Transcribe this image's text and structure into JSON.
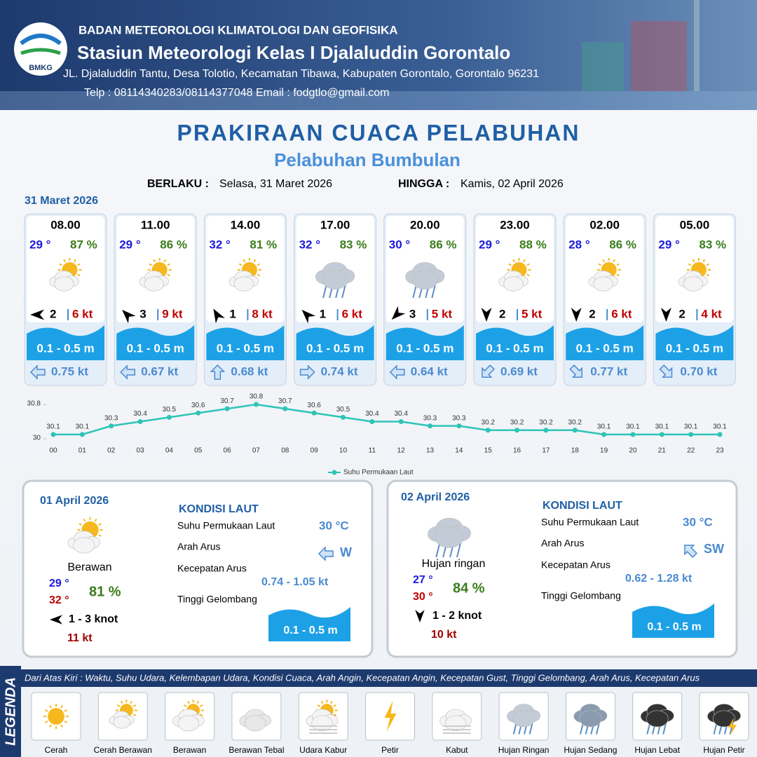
{
  "header": {
    "org": "BADAN METEOROLOGI KLIMATOLOGI DAN GEOFISIKA",
    "logo_text": "BMKG",
    "station": "Stasiun Meteorologi Kelas I Djalaluddin Gorontalo",
    "address": "JL. Djalaluddin Tantu, Desa Tolotio, Kecamatan Tibawa, Kabupaten Gorontalo, Gorontalo 96231",
    "contact": "Telp : 08114340283/08114377048 Email : fodgtlo@gmail.com"
  },
  "title": "PRAKIRAAN CUACA PELABUHAN",
  "subtitle": "Pelabuhan Bumbulan",
  "validity": {
    "from_label": "BERLAKU :",
    "from": "Selasa, 31 Maret 2026",
    "to_label": "HINGGA :",
    "to": "Kamis, 02 April 2026"
  },
  "forecast_date": "31 Maret 2026",
  "cards": [
    {
      "time": "08.00",
      "temp": "29 °",
      "humidity": "87 %",
      "wind": "2",
      "gust": "6 kt",
      "wave": "0.1 - 0.5 m",
      "current": "0.75 kt"
    },
    {
      "time": "11.00",
      "temp": "29 °",
      "humidity": "86 %",
      "wind": "3",
      "gust": "9 kt",
      "wave": "0.1 - 0.5 m",
      "current": "0.67 kt"
    },
    {
      "time": "14.00",
      "temp": "32 °",
      "humidity": "81 %",
      "wind": "1",
      "gust": "8 kt",
      "wave": "0.1 - 0.5 m",
      "current": "0.68 kt"
    },
    {
      "time": "17.00",
      "temp": "32 °",
      "humidity": "83 %",
      "wind": "1",
      "gust": "6 kt",
      "wave": "0.1 - 0.5 m",
      "current": "0.74 kt"
    },
    {
      "time": "20.00",
      "temp": "30 °",
      "humidity": "86 %",
      "wind": "3",
      "gust": "5 kt",
      "wave": "0.1 - 0.5 m",
      "current": "0.64 kt"
    },
    {
      "time": "23.00",
      "temp": "29 °",
      "humidity": "88 %",
      "wind": "2",
      "gust": "5 kt",
      "wave": "0.1 - 0.5 m",
      "current": "0.69 kt"
    },
    {
      "time": "02.00",
      "temp": "28 °",
      "humidity": "86 %",
      "wind": "2",
      "gust": "6 kt",
      "wave": "0.1 - 0.5 m",
      "current": "0.77 kt"
    },
    {
      "time": "05.00",
      "temp": "29 °",
      "humidity": "83 %",
      "wind": "2",
      "gust": "4 kt",
      "wave": "0.1 - 0.5 m",
      "current": "0.70 kt"
    }
  ],
  "sst_chart": {
    "type": "line",
    "categories": [
      "00",
      "01",
      "02",
      "03",
      "04",
      "05",
      "06",
      "07",
      "08",
      "09",
      "10",
      "11",
      "12",
      "13",
      "14",
      "15",
      "16",
      "17",
      "18",
      "19",
      "20",
      "21",
      "22",
      "23"
    ],
    "series": [
      {
        "name": "Suhu Permukaan Laut",
        "color": "#2ec4b6",
        "values": [
          30.1,
          30.1,
          30.3,
          30.4,
          30.5,
          30.6,
          30.7,
          30.8,
          30.7,
          30.6,
          30.5,
          30.4,
          30.4,
          30.3,
          30.3,
          30.2,
          30.2,
          30.2,
          30.2,
          30.1,
          30.1,
          30.1,
          30.1,
          30.1
        ]
      }
    ],
    "ylim": [
      30,
      30.8
    ],
    "yticks": [
      30,
      30.8
    ]
  },
  "daily": [
    {
      "date": "01 April 2026",
      "condition": "Berawan",
      "temp_min": "29 °",
      "temp_max": "32 °",
      "humidity": "81 %",
      "wind": "1 - 3 knot",
      "gust": "11 kt",
      "sea_title": "KONDISI LAUT",
      "sst_label": "Suhu Permukaan Laut",
      "sst": "30 °C",
      "current_dir_label": "Arah Arus",
      "current_dir": "W",
      "current_speed_label": "Kecepatan Arus",
      "current_speed": "0.74  - 1.05 kt",
      "wave_label": "Tinggi Gelombang",
      "wave": "0.1 - 0.5 m"
    },
    {
      "date": "02 April 2026",
      "condition": "Hujan ringan",
      "temp_min": "27 °",
      "temp_max": "30 °",
      "humidity": "84 %",
      "wind": "1 - 2 knot",
      "gust": "10 kt",
      "sea_title": "KONDISI LAUT",
      "sst_label": "Suhu Permukaan Laut",
      "sst": "30 °C",
      "current_dir_label": "Arah Arus",
      "current_dir": "SW",
      "current_speed_label": "Kecepatan Arus",
      "current_speed": "0.62 - 1.28 kt",
      "wave_label": "Tinggi Gelombang",
      "wave": "0.1 - 0.5 m"
    }
  ],
  "legend": {
    "title": "LEGENDA",
    "description": "Dari Atas Kiri : Waktu, Suhu Udara, Kelembapan Udara, Kondisi Cuaca, Arah Angin, Kecepatan Angin, Kecepatan Gust, Tinggi Gelombang, Arah Arus, Kecepatan Arus",
    "items": [
      "Cerah",
      "Cerah Berawan",
      "Berawan",
      "Berawan Tebal",
      "Udara Kabur",
      "Petir",
      "Kabut",
      "Hujan Ringan",
      "Hujan Sedang",
      "Hujan Lebat",
      "Hujan Petir"
    ]
  }
}
